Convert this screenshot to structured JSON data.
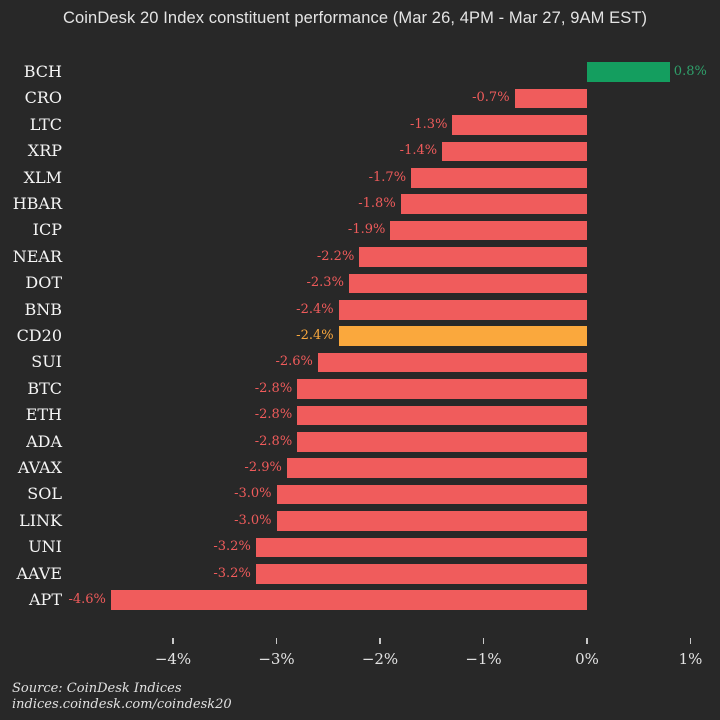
{
  "title": "CoinDesk 20 Index constituent performance (Mar 26, 4PM - Mar 27, 9AM EST)",
  "source": {
    "line1": "Source: CoinDesk Indices",
    "line2": "indices.coindesk.com/coindesk20"
  },
  "colors": {
    "background": "#282828",
    "red_bar": "#f05c5c",
    "green_bar": "#149e5f",
    "orange_bar": "#faa83d",
    "red_label": "#ef5b5b",
    "green_label": "#2f9f6a",
    "orange_label": "#faa83d"
  },
  "chart_data": {
    "type": "bar",
    "orientation": "horizontal",
    "title": "CoinDesk 20 Index constituent performance (Mar 26, 4PM - Mar 27, 9AM EST)",
    "xlabel": "",
    "ylabel": "",
    "xlim": [
      -4.75,
      1.25
    ],
    "grid": false,
    "items": [
      {
        "label": "BCH",
        "value": 0.8,
        "display": "0.8%",
        "color": "green"
      },
      {
        "label": "CRO",
        "value": -0.7,
        "display": "-0.7%",
        "color": "red"
      },
      {
        "label": "LTC",
        "value": -1.3,
        "display": "-1.3%",
        "color": "red"
      },
      {
        "label": "XRP",
        "value": -1.4,
        "display": "-1.4%",
        "color": "red"
      },
      {
        "label": "XLM",
        "value": -1.7,
        "display": "-1.7%",
        "color": "red"
      },
      {
        "label": "HBAR",
        "value": -1.8,
        "display": "-1.8%",
        "color": "red"
      },
      {
        "label": "ICP",
        "value": -1.9,
        "display": "-1.9%",
        "color": "red"
      },
      {
        "label": "NEAR",
        "value": -2.2,
        "display": "-2.2%",
        "color": "red"
      },
      {
        "label": "DOT",
        "value": -2.3,
        "display": "-2.3%",
        "color": "red"
      },
      {
        "label": "BNB",
        "value": -2.4,
        "display": "-2.4%",
        "color": "red"
      },
      {
        "label": "CD20",
        "value": -2.4,
        "display": "-2.4%",
        "color": "orange"
      },
      {
        "label": "SUI",
        "value": -2.6,
        "display": "-2.6%",
        "color": "red"
      },
      {
        "label": "BTC",
        "value": -2.8,
        "display": "-2.8%",
        "color": "red"
      },
      {
        "label": "ETH",
        "value": -2.8,
        "display": "-2.8%",
        "color": "red"
      },
      {
        "label": "ADA",
        "value": -2.8,
        "display": "-2.8%",
        "color": "red"
      },
      {
        "label": "AVAX",
        "value": -2.9,
        "display": "-2.9%",
        "color": "red"
      },
      {
        "label": "SOL",
        "value": -3.0,
        "display": "-3.0%",
        "color": "red"
      },
      {
        "label": "LINK",
        "value": -3.0,
        "display": "-3.0%",
        "color": "red"
      },
      {
        "label": "UNI",
        "value": -3.2,
        "display": "-3.2%",
        "color": "red"
      },
      {
        "label": "AAVE",
        "value": -3.2,
        "display": "-3.2%",
        "color": "red"
      },
      {
        "label": "APT",
        "value": -4.6,
        "display": "-4.6%",
        "color": "red"
      }
    ],
    "x_ticks": [
      {
        "value": -4,
        "label": "−4%"
      },
      {
        "value": -3,
        "label": "−3%"
      },
      {
        "value": -2,
        "label": "−2%"
      },
      {
        "value": -1,
        "label": "−1%"
      },
      {
        "value": 0,
        "label": "0%"
      },
      {
        "value": 1,
        "label": "1%"
      }
    ]
  }
}
